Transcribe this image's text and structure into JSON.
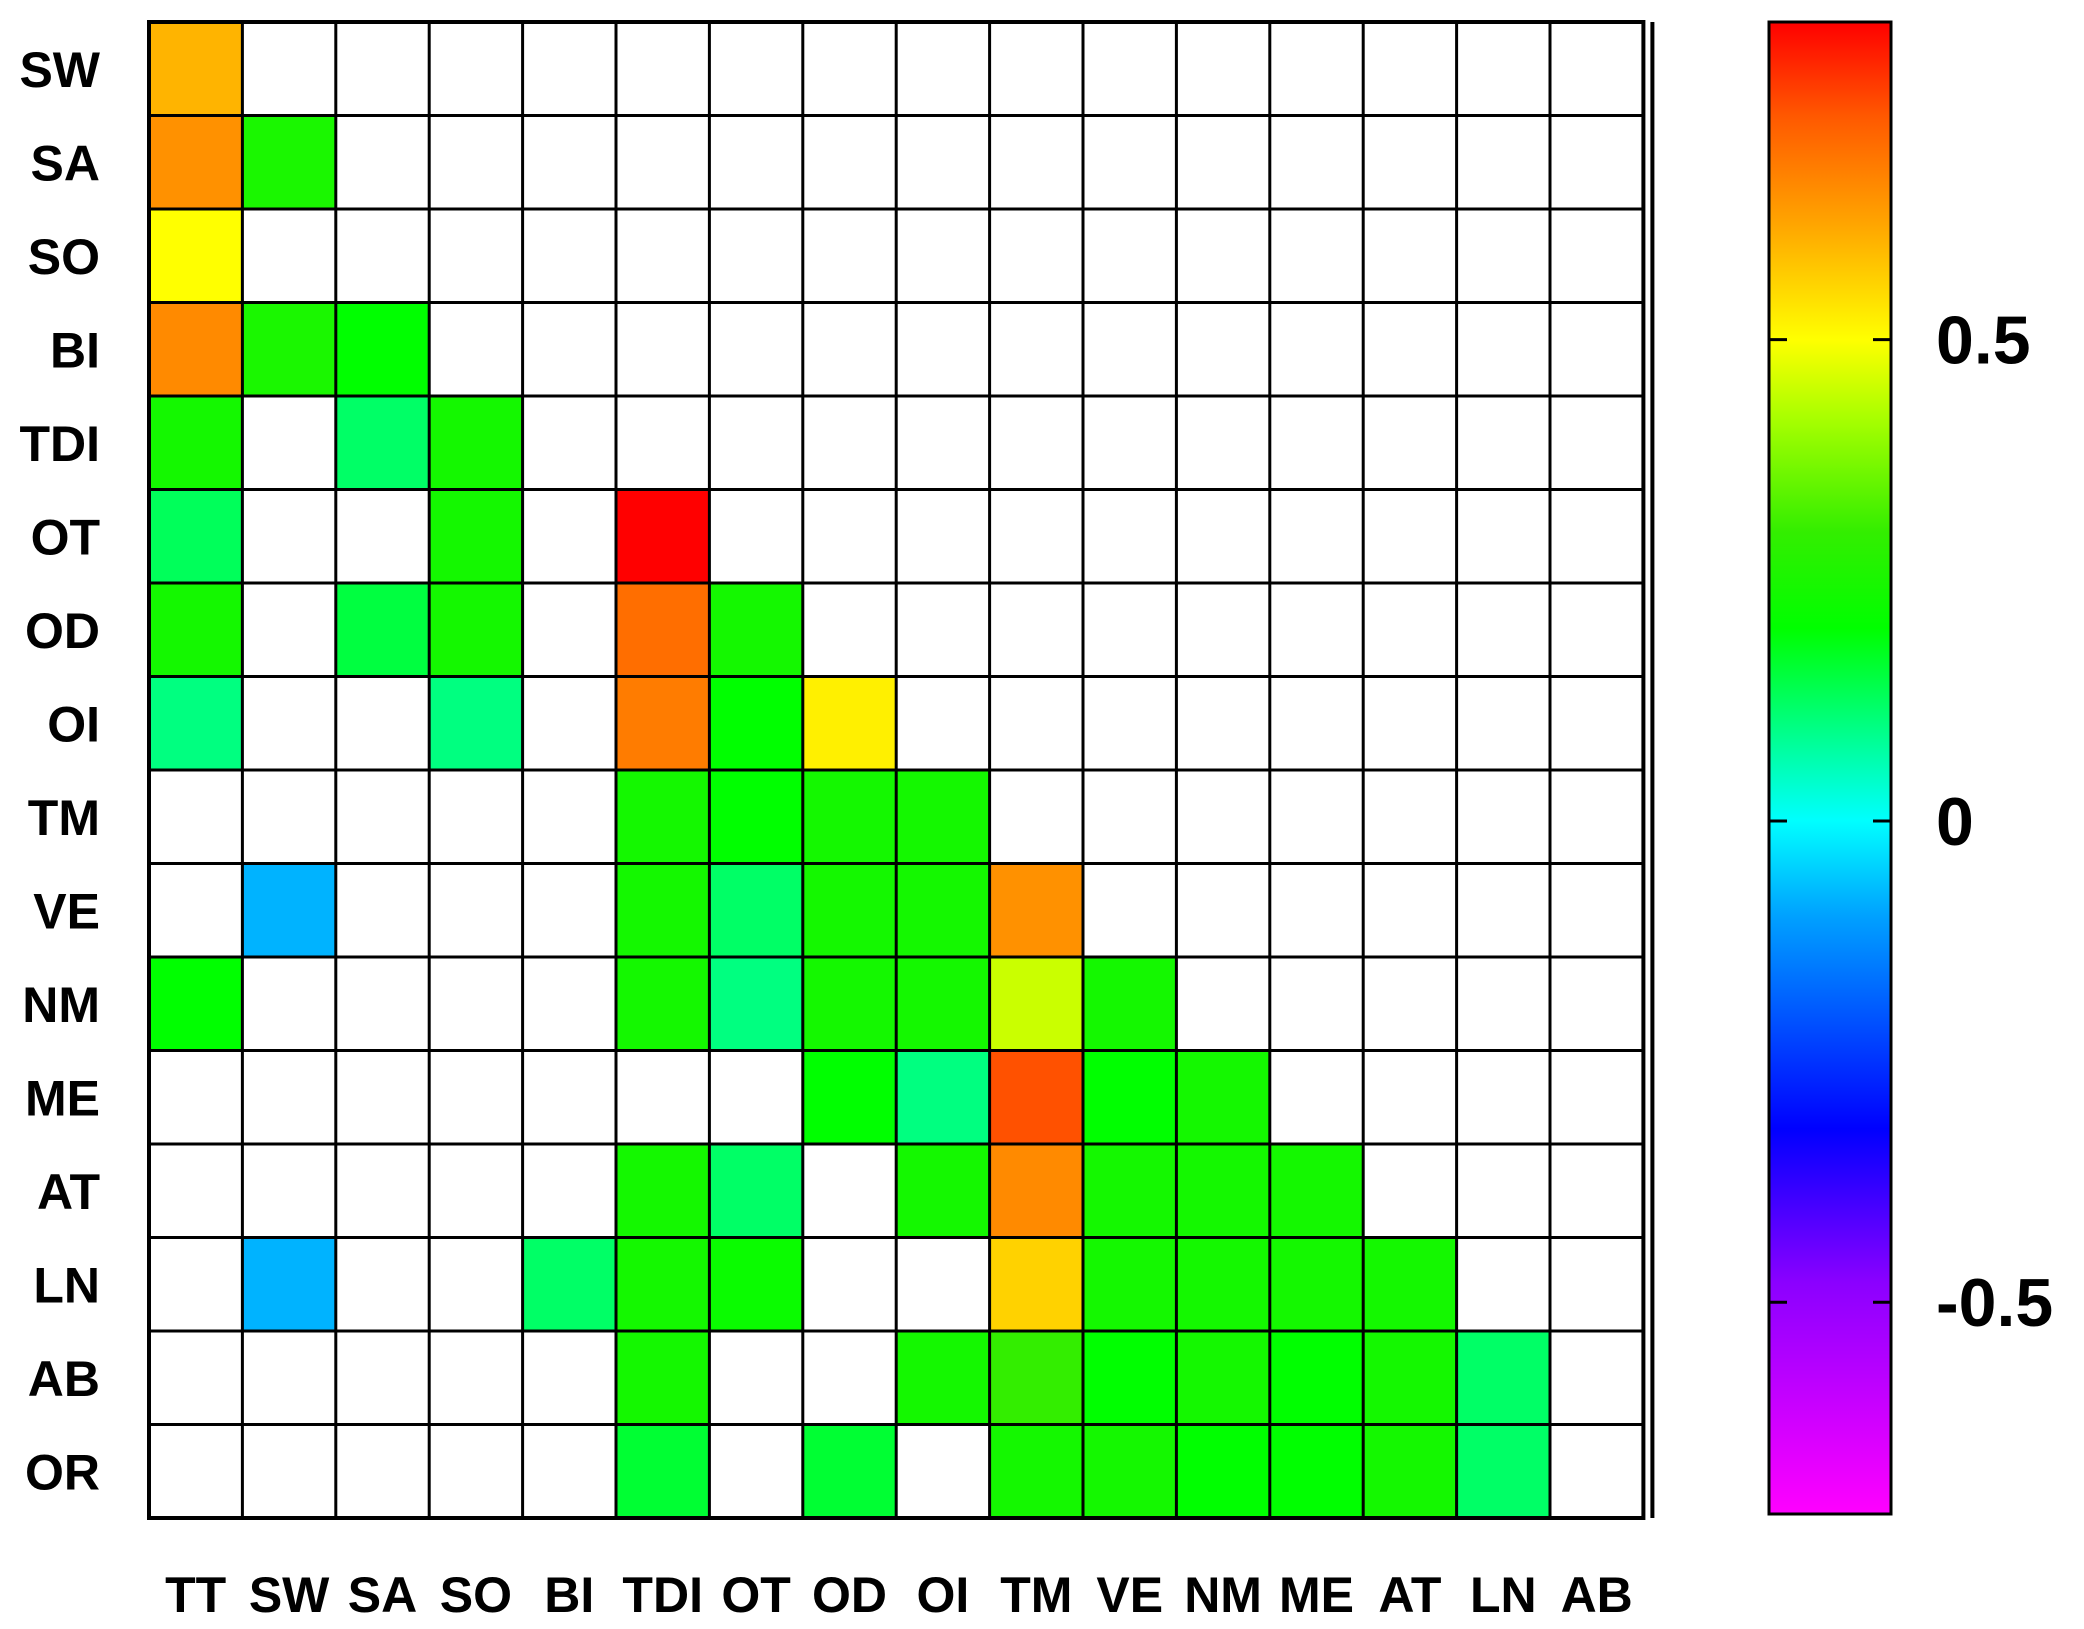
{
  "chart_data": {
    "type": "heatmap",
    "title": "",
    "xlabel": "",
    "ylabel": "",
    "x_labels": [
      "TT",
      "SW",
      "SA",
      "SO",
      "BI",
      "TDI",
      "OT",
      "OD",
      "OI",
      "TM",
      "VE",
      "NM",
      "ME",
      "AT",
      "LN",
      "AB"
    ],
    "y_labels": [
      "SW",
      "SA",
      "SO",
      "BI",
      "TDI",
      "OT",
      "OD",
      "OI",
      "TM",
      "VE",
      "NM",
      "ME",
      "AT",
      "LN",
      "AB",
      "OR"
    ],
    "note_null": "null = blank (white) cell",
    "values": [
      [
        0.6,
        null,
        null,
        null,
        null,
        null,
        null,
        null,
        null,
        null,
        null,
        null,
        null,
        null,
        null,
        null
      ],
      [
        0.65,
        0.25,
        null,
        null,
        null,
        null,
        null,
        null,
        null,
        null,
        null,
        null,
        null,
        null,
        null,
        null
      ],
      [
        0.5,
        null,
        null,
        null,
        null,
        null,
        null,
        null,
        null,
        null,
        null,
        null,
        null,
        null,
        null,
        null
      ],
      [
        0.66,
        0.25,
        0.2,
        null,
        null,
        null,
        null,
        null,
        null,
        null,
        null,
        null,
        null,
        null,
        null,
        null
      ],
      [
        0.24,
        null,
        0.12,
        0.24,
        null,
        null,
        null,
        null,
        null,
        null,
        null,
        null,
        null,
        null,
        null,
        null
      ],
      [
        0.13,
        null,
        null,
        0.24,
        null,
        0.85,
        null,
        null,
        null,
        null,
        null,
        null,
        null,
        null,
        null,
        null
      ],
      [
        0.24,
        null,
        0.15,
        0.24,
        null,
        0.7,
        0.24,
        null,
        null,
        null,
        null,
        null,
        null,
        null,
        null,
        null
      ],
      [
        0.1,
        null,
        null,
        0.1,
        null,
        0.68,
        0.2,
        0.52,
        null,
        null,
        null,
        null,
        null,
        null,
        null,
        null
      ],
      [
        null,
        null,
        null,
        null,
        null,
        0.24,
        0.2,
        0.24,
        0.24,
        null,
        null,
        null,
        null,
        null,
        null,
        null
      ],
      [
        null,
        -0.08,
        null,
        null,
        null,
        0.24,
        0.12,
        0.24,
        0.24,
        0.65,
        null,
        null,
        null,
        null,
        null,
        null
      ],
      [
        0.2,
        null,
        null,
        null,
        null,
        0.24,
        0.1,
        0.24,
        0.24,
        0.45,
        0.24,
        null,
        null,
        null,
        null,
        null
      ],
      [
        null,
        null,
        null,
        null,
        null,
        null,
        null,
        0.2,
        0.1,
        0.74,
        0.2,
        0.24,
        null,
        null,
        null,
        null
      ],
      [
        null,
        null,
        null,
        null,
        null,
        0.24,
        0.12,
        null,
        0.24,
        0.66,
        0.24,
        0.24,
        0.24,
        null,
        null,
        null
      ],
      [
        null,
        -0.08,
        null,
        null,
        0.12,
        0.24,
        0.22,
        null,
        null,
        0.56,
        0.24,
        0.24,
        0.24,
        0.24,
        null,
        null
      ],
      [
        null,
        null,
        null,
        null,
        null,
        0.24,
        null,
        null,
        0.24,
        0.3,
        0.2,
        0.24,
        0.2,
        0.24,
        0.12,
        null
      ],
      [
        null,
        null,
        null,
        null,
        null,
        0.16,
        null,
        0.16,
        null,
        0.24,
        0.24,
        0.2,
        0.2,
        0.24,
        0.12,
        null
      ]
    ],
    "colorbar": {
      "min": -0.72,
      "max": 0.83,
      "ticks": [
        0.5,
        0,
        -0.5
      ],
      "tick_labels": [
        "0.5",
        "0",
        "-0.5"
      ],
      "colormap": [
        [
          -0.72,
          "#ff00ff"
        ],
        [
          -0.48,
          "#8b00ff"
        ],
        [
          -0.32,
          "#0000ff"
        ],
        [
          -0.1,
          "#00a0ff"
        ],
        [
          0.0,
          "#00ffff"
        ],
        [
          0.1,
          "#00ff80"
        ],
        [
          0.2,
          "#00ff00"
        ],
        [
          0.3,
          "#33ee00"
        ],
        [
          0.42,
          "#aaff00"
        ],
        [
          0.5,
          "#ffff00"
        ],
        [
          0.62,
          "#ffa500"
        ],
        [
          0.73,
          "#ff5a00"
        ],
        [
          0.83,
          "#ff0000"
        ]
      ]
    }
  }
}
